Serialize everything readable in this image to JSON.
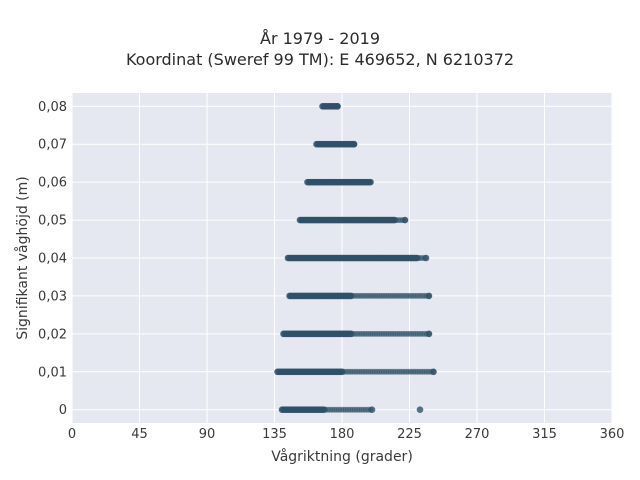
{
  "chart_data": {
    "type": "scatter",
    "title_lines": [
      "År 1979 - 2019",
      "Koordinat (Sweref 99 TM): E 469652, N 6210372"
    ],
    "xlabel": "Vågriktning (grader)",
    "ylabel": "Signifikant våghöjd (m)",
    "xlim": [
      0,
      360
    ],
    "ylim": [
      -0.0035,
      0.0835
    ],
    "xticks": [
      0,
      45,
      90,
      135,
      180,
      225,
      270,
      315,
      360
    ],
    "xtick_labels": [
      "0",
      "45",
      "90",
      "135",
      "180",
      "225",
      "270",
      "315",
      "360"
    ],
    "yticks": [
      0,
      0.01,
      0.02,
      0.03,
      0.04,
      0.05,
      0.06,
      0.07,
      0.08
    ],
    "ytick_labels": [
      "0",
      "0,01",
      "0,02",
      "0,03",
      "0,04",
      "0,05",
      "0,06",
      "0,07",
      "0,08"
    ],
    "grid": true,
    "point_color": "#2f5068",
    "background_color": "#e5e8f0",
    "rows": [
      {
        "y": 0.0,
        "x_min": 140,
        "x_max": 200,
        "dense_to": 168,
        "outliers": [
          232
        ]
      },
      {
        "y": 0.01,
        "x_min": 137,
        "x_max": 241,
        "dense_to": 180,
        "outliers": []
      },
      {
        "y": 0.02,
        "x_min": 141,
        "x_max": 238,
        "dense_to": 186,
        "outliers": []
      },
      {
        "y": 0.03,
        "x_min": 145,
        "x_max": 238,
        "dense_to": 186,
        "outliers": []
      },
      {
        "y": 0.04,
        "x_min": 144,
        "x_max": 236,
        "dense_to": 230,
        "outliers": []
      },
      {
        "y": 0.05,
        "x_min": 152,
        "x_max": 222,
        "dense_to": 215,
        "outliers": []
      },
      {
        "y": 0.06,
        "x_min": 157,
        "x_max": 199,
        "dense_to": 198,
        "outliers": []
      },
      {
        "y": 0.07,
        "x_min": 163,
        "x_max": 188,
        "dense_to": 188,
        "outliers": []
      },
      {
        "y": 0.08,
        "x_min": 167,
        "x_max": 177,
        "dense_to": 177,
        "outliers": []
      }
    ]
  }
}
